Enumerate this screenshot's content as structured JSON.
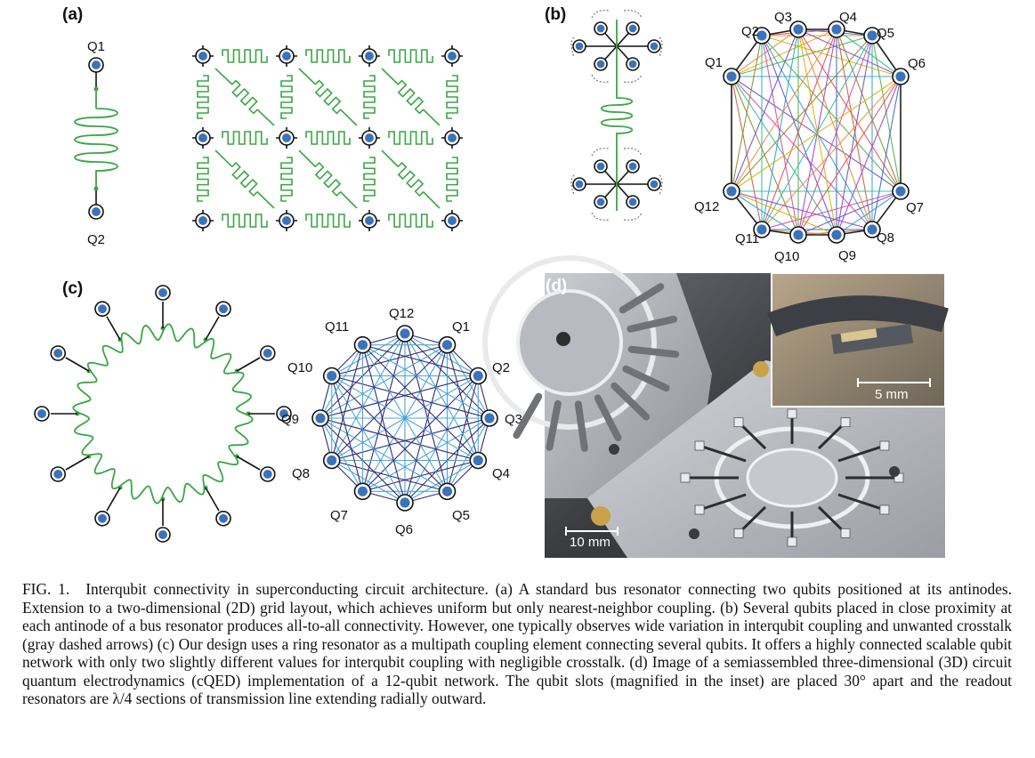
{
  "panels": {
    "a": {
      "label": "(a)",
      "qubit_labels": [
        "Q1",
        "Q2"
      ]
    },
    "b": {
      "label": "(b)",
      "qubit_labels": [
        "Q1",
        "Q2",
        "Q3",
        "Q4",
        "Q5",
        "Q6",
        "Q7",
        "Q8",
        "Q9",
        "Q10",
        "Q11",
        "Q12"
      ]
    },
    "c": {
      "label": "(c)",
      "qubit_labels": [
        "Q1",
        "Q2",
        "Q3",
        "Q4",
        "Q5",
        "Q6",
        "Q7",
        "Q8",
        "Q9",
        "Q10",
        "Q11",
        "Q12"
      ]
    },
    "d": {
      "label": "(d)",
      "scale_bar_main": "10 mm",
      "scale_bar_inset": "5 mm"
    }
  },
  "colors": {
    "qubit_fill": "#3b73b9",
    "resonator_green": "#3aa645",
    "ring_edge_outer": "#2e2a7a",
    "ring_edge_inner": "#4aa7d8"
  },
  "caption": {
    "fig_id": "FIG. 1.",
    "text": "Interqubit connectivity in superconducting circuit architecture. (a) A standard bus resonator connecting two qubits positioned at its antinodes. Extension to a two-dimensional (2D) grid layout, which achieves uniform but only nearest-neighbor coupling. (b) Several qubits placed in close proximity at each antinode of a bus resonator produces all-to-all connectivity. However, one typically observes wide variation in interqubit coupling and unwanted crosstalk (gray dashed arrows) (c) Our design uses a ring resonator as a multipath coupling element connecting several qubits. It offers a highly connected scalable qubit network with only two slightly different values for interqubit coupling with negligible crosstalk. (d) Image of a semiassembled three-dimensional (3D) circuit quantum electrodynamics (cQED) implementation of a 12-qubit network. The qubit slots (magnified in the inset) are placed 30° apart and the readout resonators are λ/4 sections of transmission line extending radially outward."
  }
}
